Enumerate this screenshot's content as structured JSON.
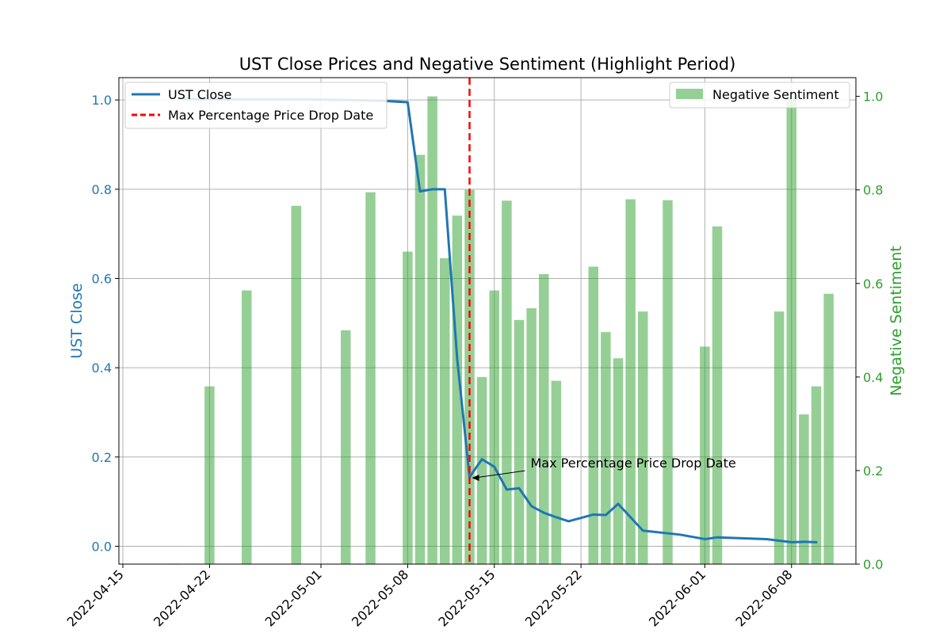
{
  "chart_data": {
    "type": "bar+line",
    "title": "UST Close Prices and Negative Sentiment (Highlight Period)",
    "xlabel": "",
    "ylabel_left": "UST Close",
    "ylabel_right": "Negative Sentiment",
    "x_ticks": [
      "2022-04-15",
      "2022-04-22",
      "2022-05-01",
      "2022-05-08",
      "2022-05-15",
      "2022-05-22",
      "2022-06-01",
      "2022-06-08"
    ],
    "x_range": [
      "2022-04-15",
      "2022-06-10"
    ],
    "y_left_range": [
      -0.04,
      1.05
    ],
    "y_left_ticks": [
      "0.0",
      "0.2",
      "0.4",
      "0.6",
      "0.8",
      "1.0"
    ],
    "y_right_range": [
      0.0,
      1.04
    ],
    "y_right_ticks": [
      "0.0",
      "0.2",
      "0.4",
      "0.6",
      "0.8",
      "1.0"
    ],
    "grid": true,
    "series": [
      {
        "name": "UST Close",
        "kind": "line",
        "axis": "left",
        "color": "#1f77b4",
        "points": [
          [
            "2022-04-20",
            1.002
          ],
          [
            "2022-04-25",
            1.001
          ],
          [
            "2022-04-30",
            1.001
          ],
          [
            "2022-05-03",
            1.0
          ],
          [
            "2022-05-06",
            0.998
          ],
          [
            "2022-05-08",
            0.995
          ],
          [
            "2022-05-09",
            0.795
          ],
          [
            "2022-05-10",
            0.8
          ],
          [
            "2022-05-11",
            0.8
          ],
          [
            "2022-05-12",
            0.42
          ],
          [
            "2022-05-13",
            0.155
          ],
          [
            "2022-05-14",
            0.195
          ],
          [
            "2022-05-15",
            0.178
          ],
          [
            "2022-05-16",
            0.127
          ],
          [
            "2022-05-17",
            0.13
          ],
          [
            "2022-05-18",
            0.09
          ],
          [
            "2022-05-19",
            0.075
          ],
          [
            "2022-05-20",
            0.065
          ],
          [
            "2022-05-21",
            0.056
          ],
          [
            "2022-05-23",
            0.071
          ],
          [
            "2022-05-24",
            0.07
          ],
          [
            "2022-05-25",
            0.095
          ],
          [
            "2022-05-27",
            0.035
          ],
          [
            "2022-05-30",
            0.026
          ],
          [
            "2022-06-01",
            0.016
          ],
          [
            "2022-06-02",
            0.02
          ],
          [
            "2022-06-06",
            0.016
          ],
          [
            "2022-06-08",
            0.009
          ],
          [
            "2022-06-09",
            0.01
          ],
          [
            "2022-06-10",
            0.009
          ]
        ]
      },
      {
        "name": "Negative Sentiment",
        "kind": "bar",
        "axis": "right",
        "color": "#2ca02c",
        "points": [
          [
            "2022-04-19",
            0.001
          ],
          [
            "2022-04-22",
            0.38
          ],
          [
            "2022-04-25",
            0.585
          ],
          [
            "2022-04-29",
            0.766
          ],
          [
            "2022-05-03",
            0.5
          ],
          [
            "2022-05-04",
            0.001
          ],
          [
            "2022-05-05",
            0.795
          ],
          [
            "2022-05-08",
            0.668
          ],
          [
            "2022-05-09",
            0.875
          ],
          [
            "2022-05-10",
            1.0
          ],
          [
            "2022-05-11",
            0.654
          ],
          [
            "2022-05-12",
            0.745
          ],
          [
            "2022-05-13",
            0.8
          ],
          [
            "2022-05-14",
            0.4
          ],
          [
            "2022-05-15",
            0.585
          ],
          [
            "2022-05-16",
            0.777
          ],
          [
            "2022-05-17",
            0.522
          ],
          [
            "2022-05-18",
            0.547
          ],
          [
            "2022-05-19",
            0.62
          ],
          [
            "2022-05-20",
            0.392
          ],
          [
            "2022-05-23",
            0.636
          ],
          [
            "2022-05-24",
            0.496
          ],
          [
            "2022-05-25",
            0.44
          ],
          [
            "2022-05-26",
            0.78
          ],
          [
            "2022-05-27",
            0.54
          ],
          [
            "2022-05-29",
            0.778
          ],
          [
            "2022-06-01",
            0.465
          ],
          [
            "2022-06-02",
            0.722
          ],
          [
            "2022-06-07",
            0.54
          ],
          [
            "2022-06-08",
            1.0
          ],
          [
            "2022-06-09",
            0.32
          ],
          [
            "2022-06-10",
            0.38
          ],
          [
            "2022-06-11",
            0.578
          ]
        ]
      }
    ],
    "vline": {
      "name": "Max Percentage Price Drop Date",
      "date": "2022-05-13",
      "color": "#ff0000",
      "style": "dashed"
    },
    "annotation": {
      "text": "Max Percentage Price Drop Date",
      "target_date": "2022-05-13",
      "target_value": 0.155
    },
    "legend_left": {
      "placement": "upper-left",
      "entries": [
        "UST Close",
        "Max Percentage Price Drop Date"
      ]
    },
    "legend_right": {
      "placement": "upper-right",
      "entries": [
        "Negative Sentiment"
      ]
    }
  }
}
